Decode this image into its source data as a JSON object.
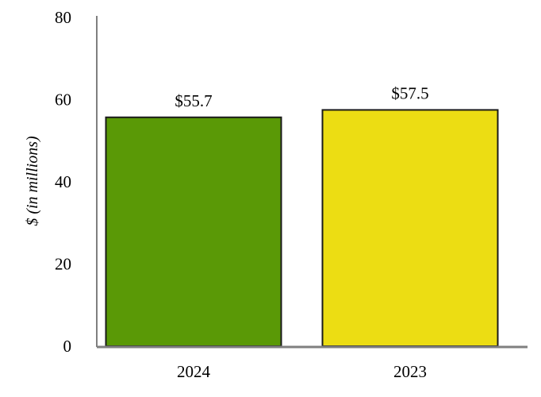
{
  "chart_data": {
    "type": "bar",
    "categories": [
      "2024",
      "2023"
    ],
    "values": [
      55.7,
      57.5
    ],
    "data_labels": [
      "$55.7",
      "$57.5"
    ],
    "colors": [
      "#5a9906",
      "#ecdd13"
    ],
    "title": "",
    "xlabel": "",
    "ylabel": "$ (in millions)",
    "ylim": [
      0,
      80
    ],
    "yticks": [
      "0",
      "20",
      "40",
      "60",
      "80"
    ],
    "grid": false,
    "axis_color": "#7f7f7f"
  }
}
